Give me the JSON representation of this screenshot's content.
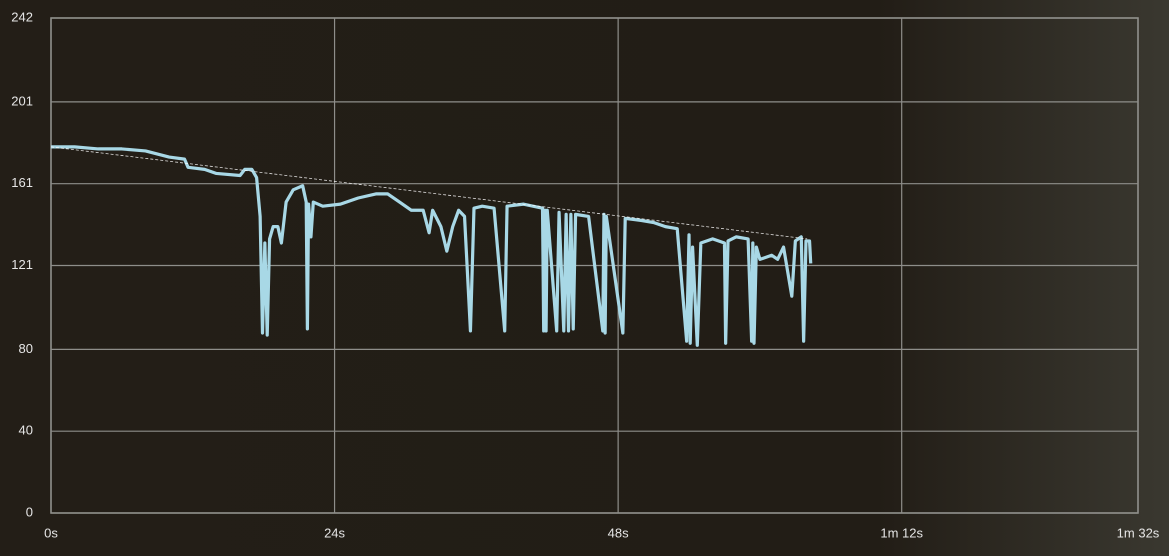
{
  "chart_data": {
    "type": "line",
    "xlim": [
      0,
      92
    ],
    "xticks": [
      {
        "value": 0,
        "label": "0s"
      },
      {
        "value": 24,
        "label": "24s"
      },
      {
        "value": 48,
        "label": "48s"
      },
      {
        "value": 72,
        "label": "1m 12s"
      },
      {
        "value": 92,
        "label": "1m 32s"
      }
    ],
    "ylim": [
      0,
      242
    ],
    "yticks": [
      0,
      40,
      80,
      121,
      161,
      201,
      242
    ],
    "grid": true,
    "series": [
      {
        "color": "#a8d8e6",
        "style": "solid",
        "x": [
          0,
          2,
          4,
          6,
          8,
          10,
          11.3,
          11.6,
          13,
          14,
          16,
          16.4,
          17,
          17.4,
          17.7,
          17.9,
          18.1,
          18.3,
          18.5,
          18.8,
          19.2,
          19.5,
          19.9,
          20.5,
          21.3,
          21.6,
          21.7,
          21.8,
          22,
          22.2,
          23,
          24.5,
          26,
          27.5,
          28.5,
          29.5,
          30.5,
          31.5,
          32,
          32.3,
          33,
          33.5,
          34,
          34.5,
          35,
          35.5,
          35.8,
          36.5,
          37.5,
          38.4,
          38.6,
          40,
          41.6,
          41.7,
          41.8,
          41.9,
          42,
          42.8,
          43,
          43.4,
          43.6,
          43.8,
          44,
          44.2,
          44.4,
          45.5,
          46.7,
          46.8,
          46.9,
          47,
          48.4,
          48.6,
          50,
          51,
          52,
          53,
          53.8,
          54,
          54.1,
          54.3,
          54.7,
          55,
          56,
          57,
          57.1,
          57.3,
          58,
          59,
          59.3,
          59.4,
          59.5,
          59.7,
          60,
          61,
          61.5,
          62,
          62.7,
          63,
          63.5,
          63.7,
          63.9,
          64.2,
          64.3
        ],
        "values": [
          179,
          179,
          178,
          178,
          177,
          174,
          173,
          169,
          168,
          166,
          165,
          168,
          168,
          164,
          145,
          88,
          132,
          87,
          134,
          140,
          140,
          132,
          152,
          158,
          160,
          152,
          90,
          151,
          135,
          152,
          150,
          151,
          154,
          156,
          156,
          152,
          148,
          148,
          137,
          148,
          140,
          128,
          140,
          148,
          145,
          89,
          149,
          150,
          149,
          89,
          150,
          151,
          149,
          89,
          148,
          89,
          148,
          89,
          147,
          89,
          146,
          89,
          146,
          90,
          146,
          145,
          89,
          146,
          88,
          145,
          88,
          144,
          143,
          142,
          140,
          139,
          84,
          136,
          83,
          130,
          82,
          132,
          134,
          132,
          83,
          133,
          135,
          134,
          84,
          132,
          83,
          130,
          124,
          126,
          124,
          130,
          106,
          133,
          135,
          84,
          133,
          133,
          122
        ]
      },
      {
        "color": "#ffffff",
        "style": "dashed",
        "x": [
          0,
          64
        ],
        "values": [
          179,
          134
        ]
      }
    ]
  }
}
